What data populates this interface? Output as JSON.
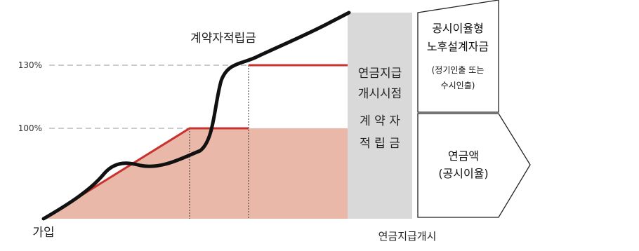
{
  "labels": {
    "reserve": "계약자적립금",
    "pct_130": "130%",
    "pct_100": "100%",
    "join": "가입",
    "annuity_start": "연금지급개시"
  },
  "gray_column": {
    "lines": [
      "연금지급",
      "개시시점",
      "계 약 자",
      "적 립 금"
    ]
  },
  "upper_box": {
    "title1": "공시이율형",
    "title2": "노후설계자금",
    "sub1": "(정기인출 또는",
    "sub2": "수시인출)"
  },
  "lower_box": {
    "line1": "연금액",
    "line2": "(공시이율)"
  },
  "colors": {
    "fill": "#e9b8a8",
    "red_line": "#c8322f",
    "black_curve": "#111111",
    "gray_column": "#d9d9d9",
    "dashed": "#9a9a9a"
  }
}
